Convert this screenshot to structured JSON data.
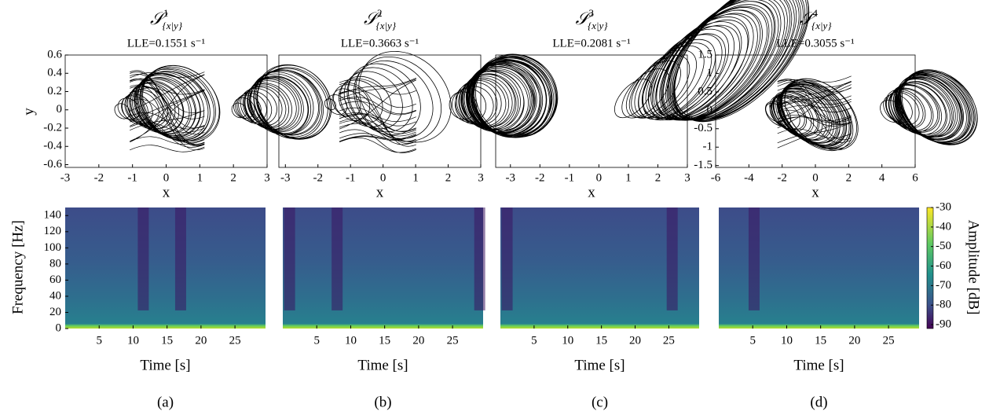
{
  "panels": [
    {
      "caption": "(a)",
      "phase": {
        "type": "line",
        "title": {
          "symbol": "𝒮",
          "sup": "1",
          "sub": "{x|y}"
        },
        "subtitle": "LLE=0.1551 s⁻¹",
        "x_label": "x",
        "y_label": "y",
        "xlim": [
          -3,
          3
        ],
        "xticks": [
          -3,
          -2,
          -1,
          0,
          1,
          2,
          3
        ],
        "ylim": [
          -0.63,
          0.6
        ],
        "yticks": [
          -0.6,
          -0.4,
          -0.2,
          0,
          0.2,
          0.4,
          0.6
        ]
      },
      "spectrogram": {
        "type": "heatmap",
        "x_label": "Time [s]",
        "y_label": "Frequency [Hz]",
        "xlim": [
          0,
          29.5
        ],
        "xticks": [
          5,
          10,
          15,
          20,
          25
        ],
        "ylim": [
          0,
          150
        ],
        "yticks": [
          0,
          20,
          40,
          60,
          80,
          100,
          120,
          140
        ]
      }
    },
    {
      "caption": "(b)",
      "phase": {
        "type": "line",
        "title": {
          "symbol": "𝒮",
          "sup": "2",
          "sub": "{x|y}"
        },
        "subtitle": "LLE=0.3663 s⁻¹",
        "x_label": "x",
        "xlim": [
          -3.2,
          3
        ],
        "xticks": [
          -3,
          -2,
          -1,
          0,
          1,
          2,
          3
        ],
        "ylim": [
          -0.63,
          0.6
        ]
      },
      "spectrogram": {
        "type": "heatmap",
        "x_label": "Time [s]",
        "xlim": [
          0,
          29.5
        ],
        "xticks": [
          5,
          10,
          15,
          20,
          25
        ],
        "ylim": [
          0,
          150
        ]
      }
    },
    {
      "caption": "(c)",
      "phase": {
        "type": "line",
        "title": {
          "symbol": "𝒮",
          "sup": "3",
          "sub": "{x|y}"
        },
        "subtitle": "LLE=0.2081 s⁻¹",
        "x_label": "x",
        "xlim": [
          -3.5,
          3
        ],
        "xticks": [
          -3,
          -2,
          -1,
          0,
          1,
          2,
          3
        ],
        "ylim": [
          -0.63,
          0.6
        ]
      },
      "spectrogram": {
        "type": "heatmap",
        "x_label": "Time [s]",
        "xlim": [
          0,
          29.5
        ],
        "xticks": [
          5,
          10,
          15,
          20,
          25
        ],
        "ylim": [
          0,
          150
        ]
      }
    },
    {
      "caption": "(d)",
      "phase": {
        "type": "line",
        "title": {
          "symbol": "𝒮",
          "sup": "4",
          "sub": "{x|y}"
        },
        "subtitle": "LLE=0.3055 s⁻¹",
        "x_label": "x",
        "xlim": [
          -6,
          6
        ],
        "xticks": [
          -6,
          -4,
          -2,
          0,
          2,
          4,
          6
        ],
        "ylim": [
          -1.55,
          1.5
        ],
        "yticks": [
          -1.5,
          -1,
          -0.5,
          0,
          0.5,
          1,
          1.5
        ]
      },
      "spectrogram": {
        "type": "heatmap",
        "x_label": "Time [s]",
        "xlim": [
          0,
          29.5
        ],
        "xticks": [
          5,
          10,
          15,
          20,
          25
        ],
        "ylim": [
          0,
          150
        ]
      }
    }
  ],
  "colorbar": {
    "label": "Amplitude [dB]",
    "lim": [
      -92,
      -30
    ],
    "ticks": [
      -90,
      -80,
      -70,
      -60,
      -50,
      -40,
      -30
    ]
  }
}
